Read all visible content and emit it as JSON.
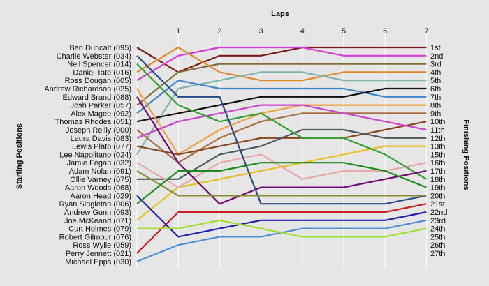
{
  "chart_data": {
    "type": "line",
    "title": "Laps",
    "xlabel": "Laps",
    "ylabel_left": "Starting Positions",
    "ylabel_right": "Finishing Positions",
    "x": [
      0,
      1,
      2,
      3,
      4,
      5,
      6,
      7
    ],
    "x_tick_labels": [
      "1",
      "2",
      "3",
      "4",
      "5",
      "6",
      "7"
    ],
    "ylim": [
      1,
      27
    ],
    "y_inverted": true,
    "grid": true,
    "starting_labels": [
      "Ben Duncalf (095)",
      "Charlie Webster (034)",
      "Neil Spencer (014)",
      "Daniel Tate (016)",
      "Ross Dougan (005)",
      "Andrew Richardson (025)",
      "Edward Brand (088)",
      "Josh Parker (057)",
      "Alex Magee (092)",
      "Thomas Rhodes (051)",
      "Joseph Reilly (000)",
      "Laura Davis (083)",
      "Lewis Plato (077)",
      "Lee Napolitano (024)",
      "Jamie Fegan (032)",
      "Adam Nolan (091)",
      "Ollie Varney (075)",
      "Aaron Woods (068)",
      "Aaron Head (029)",
      "Ryan Singleton (006)",
      "Andrew Gunn (093)",
      "Joe McKeand (071)",
      "Curt Holmes (079)",
      "Robert Gilmour (076)",
      "Ross Wylie (059)",
      "Perry Jennett (021)",
      "Michael Epps (030)"
    ],
    "finishing_labels": [
      "1st",
      "2nd",
      "3rd",
      "4th",
      "5th",
      "6th",
      "7th",
      "8th",
      "9th",
      "10th",
      "11th",
      "12th",
      "13th",
      "15th",
      "16th",
      "17th",
      "18th",
      "19th",
      "20th",
      "21st",
      "22nd",
      "23rd",
      "24th",
      "25th",
      "26th",
      "27th"
    ],
    "series": [
      {
        "color": "#7b1a1a",
        "values": [
          1,
          4,
          2,
          2,
          1,
          1,
          1,
          1
        ]
      },
      {
        "color": "#d63bd6",
        "values": [
          5,
          2,
          1,
          1,
          1,
          2,
          2,
          2
        ]
      },
      {
        "color": "#806c3a",
        "values": [
          8,
          4,
          3,
          3,
          3,
          3,
          3,
          3
        ]
      },
      {
        "color": "#e0892c",
        "values": [
          4,
          1,
          4,
          5,
          5,
          4,
          4,
          4
        ]
      },
      {
        "color": "#7fb4a8",
        "values": [
          14,
          6,
          5,
          4,
          4,
          5,
          5,
          5
        ]
      },
      {
        "color": "#3f86cf",
        "values": [
          9,
          5,
          6,
          6,
          6,
          6,
          7,
          7
        ]
      },
      {
        "color": "#101010",
        "values": [
          10,
          9,
          8,
          7,
          7,
          7,
          6,
          6
        ]
      },
      {
        "color": "#f0a040",
        "values": [
          6,
          14,
          11,
          9,
          8,
          8,
          8,
          8
        ]
      },
      {
        "color": "#a87048",
        "values": [
          11,
          15,
          12,
          10,
          9,
          9,
          9,
          9
        ]
      },
      {
        "color": "#8b4520",
        "values": [
          13,
          14,
          13,
          12,
          12,
          12,
          11,
          10
        ]
      },
      {
        "color": "#cc44cc",
        "values": [
          12,
          10,
          9,
          8,
          8,
          9,
          10,
          11
        ]
      },
      {
        "color": "#4a5a60",
        "values": [
          17,
          17,
          14,
          13,
          11,
          11,
          12,
          12
        ]
      },
      {
        "color": "#e8c020",
        "values": [
          22,
          18,
          17,
          16,
          15,
          14,
          13,
          13
        ]
      },
      {
        "color": "#e8a8a8",
        "values": [
          15,
          18,
          15,
          14,
          17,
          16,
          16,
          15
        ]
      },
      {
        "color": "#30a030",
        "values": [
          3,
          8,
          10,
          9,
          12,
          12,
          14,
          17
        ]
      },
      {
        "color": "#700a70",
        "values": [
          7,
          15,
          20,
          18,
          18,
          18,
          17,
          16
        ]
      },
      {
        "color": "#2a4a8a",
        "values": [
          2,
          7,
          7,
          20,
          20,
          20,
          20,
          19
        ]
      },
      {
        "color": "#8a8a30",
        "values": [
          16,
          19,
          19,
          19,
          19,
          19,
          19,
          19
        ]
      },
      {
        "color": "#cc2020",
        "values": [
          26,
          21,
          21,
          21,
          21,
          21,
          21,
          20
        ]
      },
      {
        "color": "#2020b0",
        "values": [
          19,
          24,
          23,
          22,
          22,
          22,
          22,
          21
        ]
      },
      {
        "color": "#4f90d8",
        "values": [
          27,
          25,
          24,
          24,
          23,
          23,
          23,
          22
        ]
      },
      {
        "color": "#a0e030",
        "values": [
          23,
          23,
          22,
          23,
          24,
          24,
          24,
          23
        ]
      },
      {
        "color": "#208820",
        "values": [
          20,
          16,
          16,
          15,
          15,
          15,
          16,
          18
        ]
      }
    ]
  }
}
